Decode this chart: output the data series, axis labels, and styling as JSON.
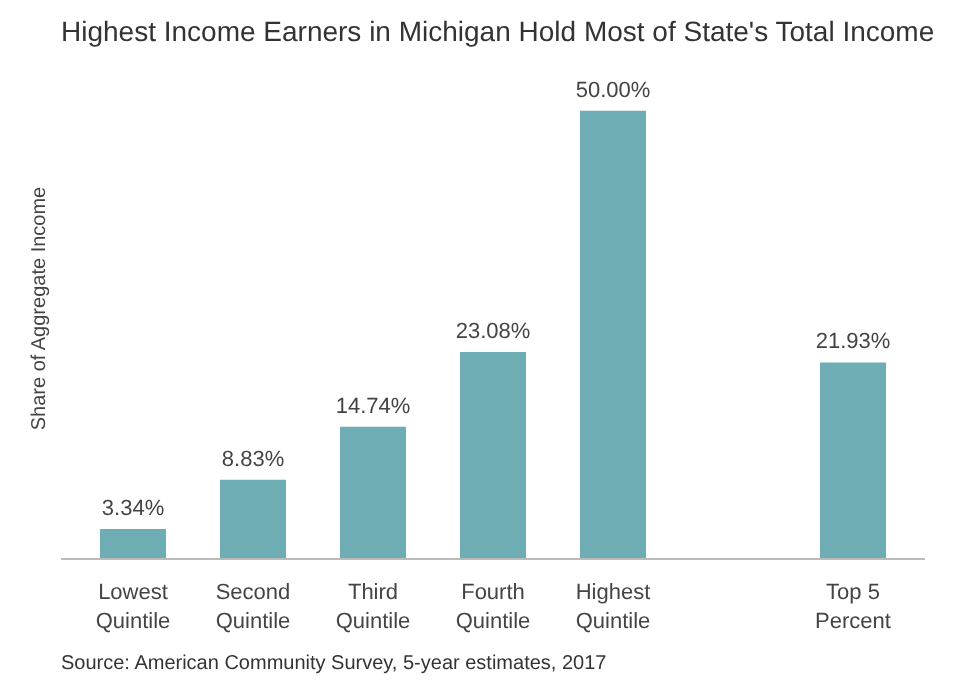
{
  "chart_data": {
    "type": "bar",
    "title": "Highest Income Earners in Michigan Hold Most of State's Total Income",
    "ylabel": "Share of Aggregate Income",
    "categories": [
      "Lowest\nQuintile",
      "Second\nQuintile",
      "Third\nQuintile",
      "Fourth\nQuintile",
      "Highest\nQuintile",
      null,
      "Top 5\nPercent"
    ],
    "values": [
      3.34,
      8.83,
      14.74,
      23.08,
      50.0,
      null,
      21.93
    ],
    "value_labels": [
      "3.34%",
      "8.83%",
      "14.74%",
      "23.08%",
      "50.00%",
      null,
      "21.93%"
    ],
    "color": "#6fadb5",
    "grid": false,
    "annotations": [
      "Source: American Community Survey, 5-year estimates, 2017"
    ]
  }
}
